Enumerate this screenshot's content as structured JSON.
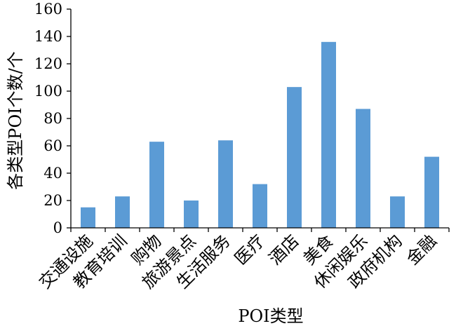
{
  "chart_data": {
    "type": "bar",
    "title": "",
    "xlabel": "POI类型",
    "ylabel": "各类型POI个数/个",
    "categories": [
      "交通设施",
      "教育培训",
      "购物",
      "旅游景点",
      "生活服务",
      "医疗",
      "酒店",
      "美食",
      "休闲娱乐",
      "政府机构",
      "金融"
    ],
    "values": [
      15,
      23,
      63,
      20,
      64,
      32,
      103,
      136,
      87,
      23,
      52
    ],
    "ylim": [
      0,
      160
    ],
    "yticks": [
      0,
      20,
      40,
      60,
      80,
      100,
      120,
      140,
      160
    ],
    "grid": false,
    "legend": "none",
    "bar_color": "#5b9bd5"
  }
}
